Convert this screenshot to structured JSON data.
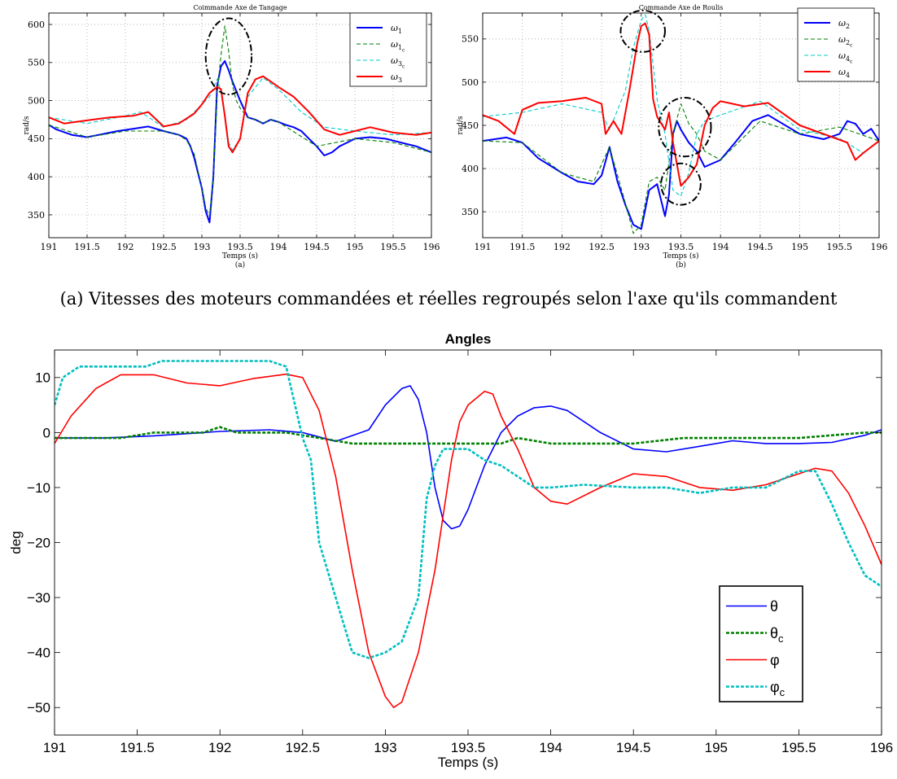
{
  "caption": "(a) Vitesses des moteurs commandées et réelles regroupés selon l'axe qu'ils commandent",
  "chart_data": [
    {
      "id": "pitch",
      "type": "line",
      "title": "Coimmande Axe de Tangage",
      "xlabel": "Temps (s)",
      "ylabel": "rad/s",
      "sublabel": "(a)",
      "xlim": [
        191,
        196
      ],
      "ylim": [
        320,
        615
      ],
      "xticks": [
        191,
        191.5,
        192,
        192.5,
        193,
        193.5,
        194,
        194.5,
        195,
        195.5,
        196
      ],
      "yticks": [
        350,
        400,
        450,
        500,
        550,
        600
      ],
      "grid": true,
      "legend_position": "top-right",
      "annotations": [
        {
          "type": "dashed-circle",
          "center": [
            193.35,
            558
          ],
          "rx": 0.3,
          "ry": 50
        }
      ],
      "series": [
        {
          "name": "ω1",
          "name_main": "ω",
          "name_sub": "1",
          "color": "#0000ff",
          "style": "solid",
          "x": [
            191,
            191.1,
            191.3,
            191.5,
            191.7,
            191.9,
            192.1,
            192.3,
            192.5,
            192.7,
            192.8,
            192.85,
            192.9,
            193,
            193.05,
            193.1,
            193.15,
            193.2,
            193.25,
            193.3,
            193.35,
            193.4,
            193.5,
            193.6,
            193.7,
            193.8,
            193.9,
            194,
            194.1,
            194.2,
            194.3,
            194.4,
            194.5,
            194.6,
            194.7,
            194.8,
            194.9,
            195,
            195.2,
            195.4,
            195.6,
            195.8,
            196
          ],
          "y": [
            468,
            462,
            455,
            452,
            456,
            460,
            463,
            466,
            460,
            455,
            450,
            440,
            425,
            385,
            355,
            340,
            400,
            520,
            545,
            552,
            540,
            525,
            500,
            478,
            475,
            470,
            475,
            472,
            468,
            465,
            460,
            450,
            440,
            428,
            432,
            440,
            445,
            450,
            452,
            450,
            445,
            440,
            432
          ]
        },
        {
          "name": "ω1c",
          "name_main": "ω",
          "name_sub": "1",
          "name_subsub": "c",
          "color": "#008000",
          "style": "dashed",
          "x": [
            191,
            191.5,
            192,
            192.5,
            192.7,
            192.8,
            192.9,
            193,
            193.05,
            193.1,
            193.15,
            193.2,
            193.25,
            193.3,
            193.35,
            193.4,
            193.45,
            193.5,
            193.6,
            193.7,
            193.8,
            193.9,
            194,
            194.5,
            195,
            195.5,
            196
          ],
          "y": [
            468,
            452,
            460,
            460,
            455,
            448,
            430,
            385,
            360,
            348,
            400,
            510,
            560,
            598,
            565,
            520,
            500,
            490,
            478,
            475,
            470,
            475,
            472,
            440,
            450,
            445,
            432
          ]
        },
        {
          "name": "ω3c",
          "name_main": "ω",
          "name_sub": "3",
          "name_subsub": "c",
          "color": "#00cccc",
          "style": "dashed",
          "x": [
            191,
            191.5,
            192,
            192.2,
            192.5,
            192.8,
            193,
            193.1,
            193.2,
            193.25,
            193.3,
            193.35,
            193.4,
            193.5,
            193.6,
            193.8,
            194,
            194.3,
            194.6,
            195,
            195.5,
            196
          ],
          "y": [
            478,
            470,
            480,
            485,
            465,
            475,
            495,
            505,
            528,
            512,
            480,
            445,
            435,
            450,
            505,
            530,
            515,
            485,
            465,
            460,
            455,
            458
          ]
        },
        {
          "name": "ω3",
          "name_main": "ω",
          "name_sub": "3",
          "color": "#ff0000",
          "style": "solid",
          "x": [
            191,
            191.2,
            191.5,
            191.8,
            192.1,
            192.3,
            192.5,
            192.7,
            192.9,
            193,
            193.1,
            193.2,
            193.25,
            193.3,
            193.35,
            193.4,
            193.5,
            193.6,
            193.7,
            193.8,
            193.9,
            194,
            194.2,
            194.4,
            194.6,
            194.8,
            195,
            195.2,
            195.5,
            195.8,
            196
          ],
          "y": [
            478,
            470,
            474,
            478,
            480,
            485,
            466,
            470,
            483,
            495,
            510,
            518,
            515,
            480,
            440,
            432,
            450,
            510,
            528,
            532,
            525,
            518,
            505,
            485,
            462,
            455,
            460,
            465,
            458,
            455,
            458
          ]
        }
      ]
    },
    {
      "id": "roll",
      "type": "line",
      "title": "Commande Axe de Roulis",
      "xlabel": "Temps (s)",
      "ylabel": "rad/s",
      "sublabel": "(b)",
      "xlim": [
        191,
        196
      ],
      "ylim": [
        320,
        580
      ],
      "xticks": [
        191,
        191.5,
        192,
        192.5,
        193,
        193.5,
        194,
        194.5,
        195,
        195.5,
        196
      ],
      "yticks": [
        350,
        400,
        450,
        500,
        550
      ],
      "grid": true,
      "legend_position": "top-right",
      "annotations": [
        {
          "type": "dashed-circle",
          "center": [
            193.02,
            559
          ],
          "rx": 0.28,
          "ry": 24
        },
        {
          "type": "dashed-circle",
          "center": [
            193.55,
            448
          ],
          "rx": 0.33,
          "ry": 34
        },
        {
          "type": "dashed-circle",
          "center": [
            193.5,
            382
          ],
          "rx": 0.25,
          "ry": 24
        }
      ],
      "series": [
        {
          "name": "ω2",
          "name_main": "ω",
          "name_sub": "2",
          "color": "#0000ff",
          "style": "solid",
          "x": [
            191,
            191.3,
            191.5,
            191.7,
            192,
            192.2,
            192.4,
            192.5,
            192.6,
            192.7,
            192.8,
            192.9,
            193,
            193.1,
            193.2,
            193.3,
            193.35,
            193.4,
            193.45,
            193.5,
            193.6,
            193.7,
            193.8,
            194,
            194.2,
            194.4,
            194.6,
            195,
            195.3,
            195.5,
            195.6,
            195.7,
            195.8,
            195.9,
            196
          ],
          "y": [
            432,
            436,
            430,
            412,
            395,
            385,
            382,
            392,
            425,
            385,
            358,
            335,
            330,
            375,
            382,
            345,
            370,
            440,
            455,
            445,
            430,
            420,
            402,
            410,
            432,
            455,
            462,
            440,
            434,
            440,
            455,
            452,
            440,
            446,
            432
          ]
        },
        {
          "name": "ω2c",
          "name_main": "ω",
          "name_sub": "2",
          "name_subsub": "c",
          "color": "#008000",
          "style": "dashed",
          "x": [
            191,
            191.5,
            192,
            192.4,
            192.6,
            192.8,
            192.9,
            193,
            193.1,
            193.2,
            193.3,
            193.4,
            193.5,
            193.6,
            193.7,
            193.8,
            194,
            194.5,
            195,
            195.5,
            196
          ],
          "y": [
            432,
            430,
            395,
            385,
            425,
            360,
            325,
            335,
            385,
            390,
            375,
            440,
            475,
            452,
            440,
            420,
            410,
            455,
            440,
            448,
            432
          ]
        },
        {
          "name": "ω4c",
          "name_main": "ω",
          "name_sub": "4",
          "name_subsub": "c",
          "color": "#00cccc",
          "style": "dashed",
          "x": [
            191,
            191.5,
            192,
            192.5,
            192.6,
            192.8,
            192.9,
            193,
            193.05,
            193.1,
            193.2,
            193.3,
            193.4,
            193.5,
            193.6,
            193.7,
            193.8,
            194,
            194.5,
            195,
            195.5,
            195.8,
            196
          ],
          "y": [
            460,
            465,
            475,
            465,
            445,
            490,
            540,
            572,
            578,
            560,
            480,
            440,
            375,
            368,
            395,
            440,
            455,
            462,
            478,
            445,
            435,
            418,
            432
          ]
        },
        {
          "name": "ω4",
          "name_main": "ω",
          "name_sub": "4",
          "color": "#ff0000",
          "style": "solid",
          "x": [
            191,
            191.2,
            191.4,
            191.5,
            191.7,
            192,
            192.3,
            192.5,
            192.55,
            192.65,
            192.75,
            192.85,
            192.95,
            193,
            193.05,
            193.1,
            193.15,
            193.2,
            193.3,
            193.35,
            193.4,
            193.5,
            193.6,
            193.7,
            193.8,
            193.9,
            194,
            194.3,
            194.6,
            195,
            195.3,
            195.6,
            195.7,
            195.8,
            196
          ],
          "y": [
            462,
            455,
            440,
            468,
            476,
            478,
            482,
            475,
            440,
            455,
            440,
            490,
            545,
            565,
            568,
            555,
            480,
            460,
            445,
            465,
            430,
            380,
            390,
            405,
            450,
            470,
            478,
            472,
            476,
            450,
            440,
            430,
            410,
            418,
            432
          ]
        }
      ]
    },
    {
      "id": "angles",
      "type": "line",
      "title": "Angles",
      "xlabel": "Temps (s)",
      "ylabel": "deg",
      "xlim": [
        191,
        196
      ],
      "ylim": [
        -55,
        15
      ],
      "xticks": [
        191,
        191.5,
        192,
        192.5,
        193,
        193.5,
        194,
        194.5,
        195,
        195.5,
        196
      ],
      "yticks": [
        10,
        0,
        -10,
        -20,
        -30,
        -40,
        -50
      ],
      "grid": false,
      "legend_position": "bottom-right",
      "series": [
        {
          "name": "θ",
          "name_main": "θ",
          "color": "#0000ff",
          "style": "solid",
          "x": [
            191,
            191.3,
            191.6,
            191.9,
            192,
            192.3,
            192.5,
            192.7,
            192.9,
            193,
            193.1,
            193.15,
            193.2,
            193.25,
            193.3,
            193.35,
            193.4,
            193.45,
            193.5,
            193.6,
            193.7,
            193.8,
            193.9,
            194,
            194.1,
            194.3,
            194.5,
            194.7,
            194.9,
            195.1,
            195.3,
            195.5,
            195.7,
            195.9,
            196
          ],
          "y": [
            -1,
            -1,
            -0.6,
            0,
            0.2,
            0.5,
            0,
            -1.6,
            0.5,
            5,
            8,
            8.5,
            6,
            0,
            -10,
            -16,
            -17.5,
            -17,
            -14,
            -6,
            0,
            3,
            4.5,
            4.8,
            4,
            0,
            -3,
            -3.5,
            -2.5,
            -1.5,
            -2,
            -2,
            -1.8,
            -0.5,
            0.5
          ]
        },
        {
          "name": "θc",
          "name_main": "θ",
          "name_sub": "c",
          "color": "#008000",
          "style": "dashed",
          "x": [
            191,
            191.4,
            191.6,
            191.9,
            192,
            192.1,
            192.4,
            192.6,
            192.8,
            193,
            193.2,
            193.5,
            193.7,
            193.8,
            194,
            194.5,
            194.8,
            195,
            195.5,
            195.9,
            196
          ],
          "y": [
            -1,
            -1,
            0,
            0,
            1,
            0,
            0,
            -1,
            -2,
            -2,
            -2,
            -2,
            -2,
            -1,
            -2,
            -2,
            -1,
            -1,
            -1,
            0,
            0
          ]
        },
        {
          "name": "φ",
          "name_main": "φ",
          "color": "#ff0000",
          "style": "solid",
          "x": [
            191,
            191.1,
            191.25,
            191.4,
            191.6,
            191.8,
            192,
            192.2,
            192.4,
            192.5,
            192.6,
            192.7,
            192.8,
            192.9,
            193,
            193.05,
            193.1,
            193.2,
            193.3,
            193.4,
            193.45,
            193.5,
            193.6,
            193.65,
            193.7,
            193.8,
            193.9,
            194,
            194.1,
            194.3,
            194.5,
            194.7,
            194.9,
            195.1,
            195.3,
            195.5,
            195.6,
            195.7,
            195.8,
            195.9,
            196
          ],
          "y": [
            -2,
            3,
            8,
            10.5,
            10.5,
            9,
            8.5,
            9.8,
            10.6,
            10,
            4,
            -8,
            -25,
            -40,
            -48,
            -50,
            -49,
            -40,
            -25,
            -5,
            2,
            5,
            7.5,
            7,
            3,
            -3,
            -10,
            -12.5,
            -13,
            -10,
            -7.5,
            -8,
            -10,
            -10.5,
            -9.5,
            -7.5,
            -6.5,
            -7,
            -11,
            -17,
            -24
          ]
        },
        {
          "name": "φc",
          "name_main": "φ",
          "name_sub": "c",
          "color": "#00bfbf",
          "style": "dashed",
          "x": [
            191,
            191.05,
            191.15,
            191.4,
            191.55,
            191.65,
            191.8,
            192.1,
            192.3,
            192.4,
            192.5,
            192.55,
            192.6,
            192.7,
            192.8,
            192.9,
            193,
            193.1,
            193.2,
            193.25,
            193.3,
            193.35,
            193.4,
            193.5,
            193.6,
            193.7,
            193.8,
            193.9,
            194,
            194.2,
            194.5,
            194.7,
            194.9,
            195.1,
            195.3,
            195.5,
            195.6,
            195.7,
            195.8,
            195.9,
            196
          ],
          "y": [
            5,
            10,
            12,
            12,
            12,
            13,
            13,
            13,
            13,
            12,
            -1,
            -5,
            -20,
            -30,
            -40,
            -41,
            -40,
            -38,
            -30,
            -12,
            -6,
            -3,
            -3,
            -3,
            -5,
            -6,
            -8,
            -10,
            -10,
            -9.5,
            -10,
            -10,
            -11,
            -10,
            -10,
            -7,
            -7,
            -13,
            -20,
            -26,
            -28
          ]
        }
      ]
    }
  ]
}
